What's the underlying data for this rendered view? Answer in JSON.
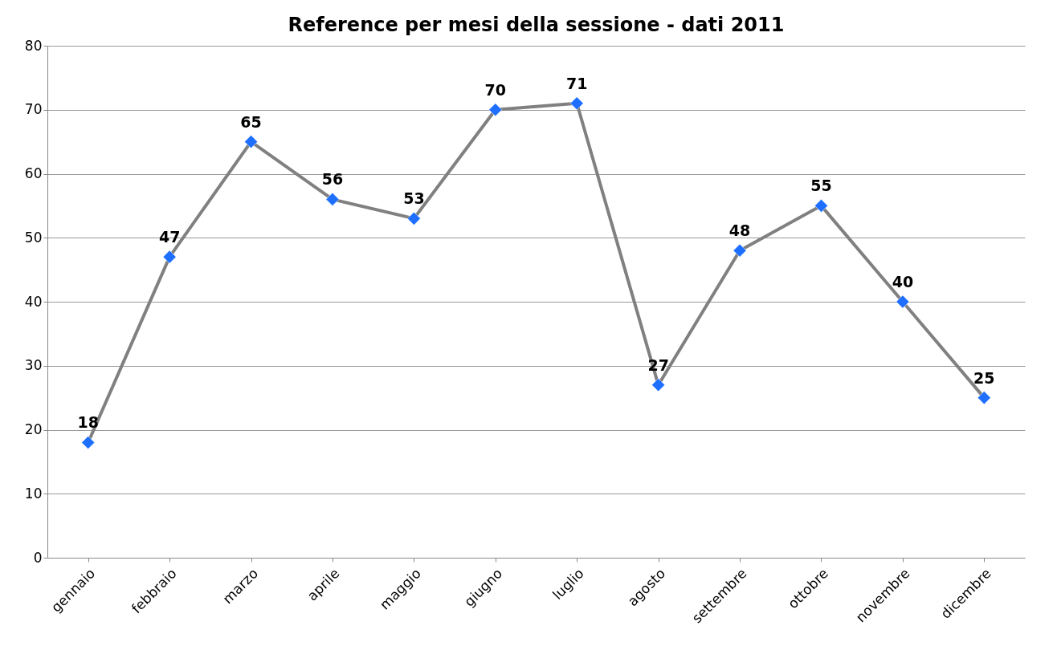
{
  "chart_data": {
    "type": "line",
    "title": "Reference per mesi della sessione - dati 2011",
    "categories": [
      "gennaio",
      "febbraio",
      "marzo",
      "aprile",
      "maggio",
      "giugno",
      "luglio",
      "agosto",
      "settembre",
      "ottobre",
      "novembre",
      "dicembre"
    ],
    "series": [
      {
        "color": "#808080",
        "values": [
          18,
          47,
          65,
          56,
          53,
          70,
          71,
          27,
          48,
          55,
          40,
          25
        ],
        "colors": [
          "#1e6fff",
          "#1e6fff",
          "#1e6fff",
          "#1e6fff",
          "#1e6fff",
          "#1e6fff",
          "#1e6fff",
          "#1e6fff",
          "#1e6fff",
          "#1e6fff",
          "#1e6fff",
          "#1e6fff"
        ]
      }
    ],
    "ylim": [
      0,
      80
    ],
    "yticks": [
      0,
      10,
      20,
      30,
      40,
      50,
      60,
      70,
      80
    ],
    "grid": "y",
    "marker": "diamond",
    "line_style": "solid",
    "data_labels": true
  }
}
